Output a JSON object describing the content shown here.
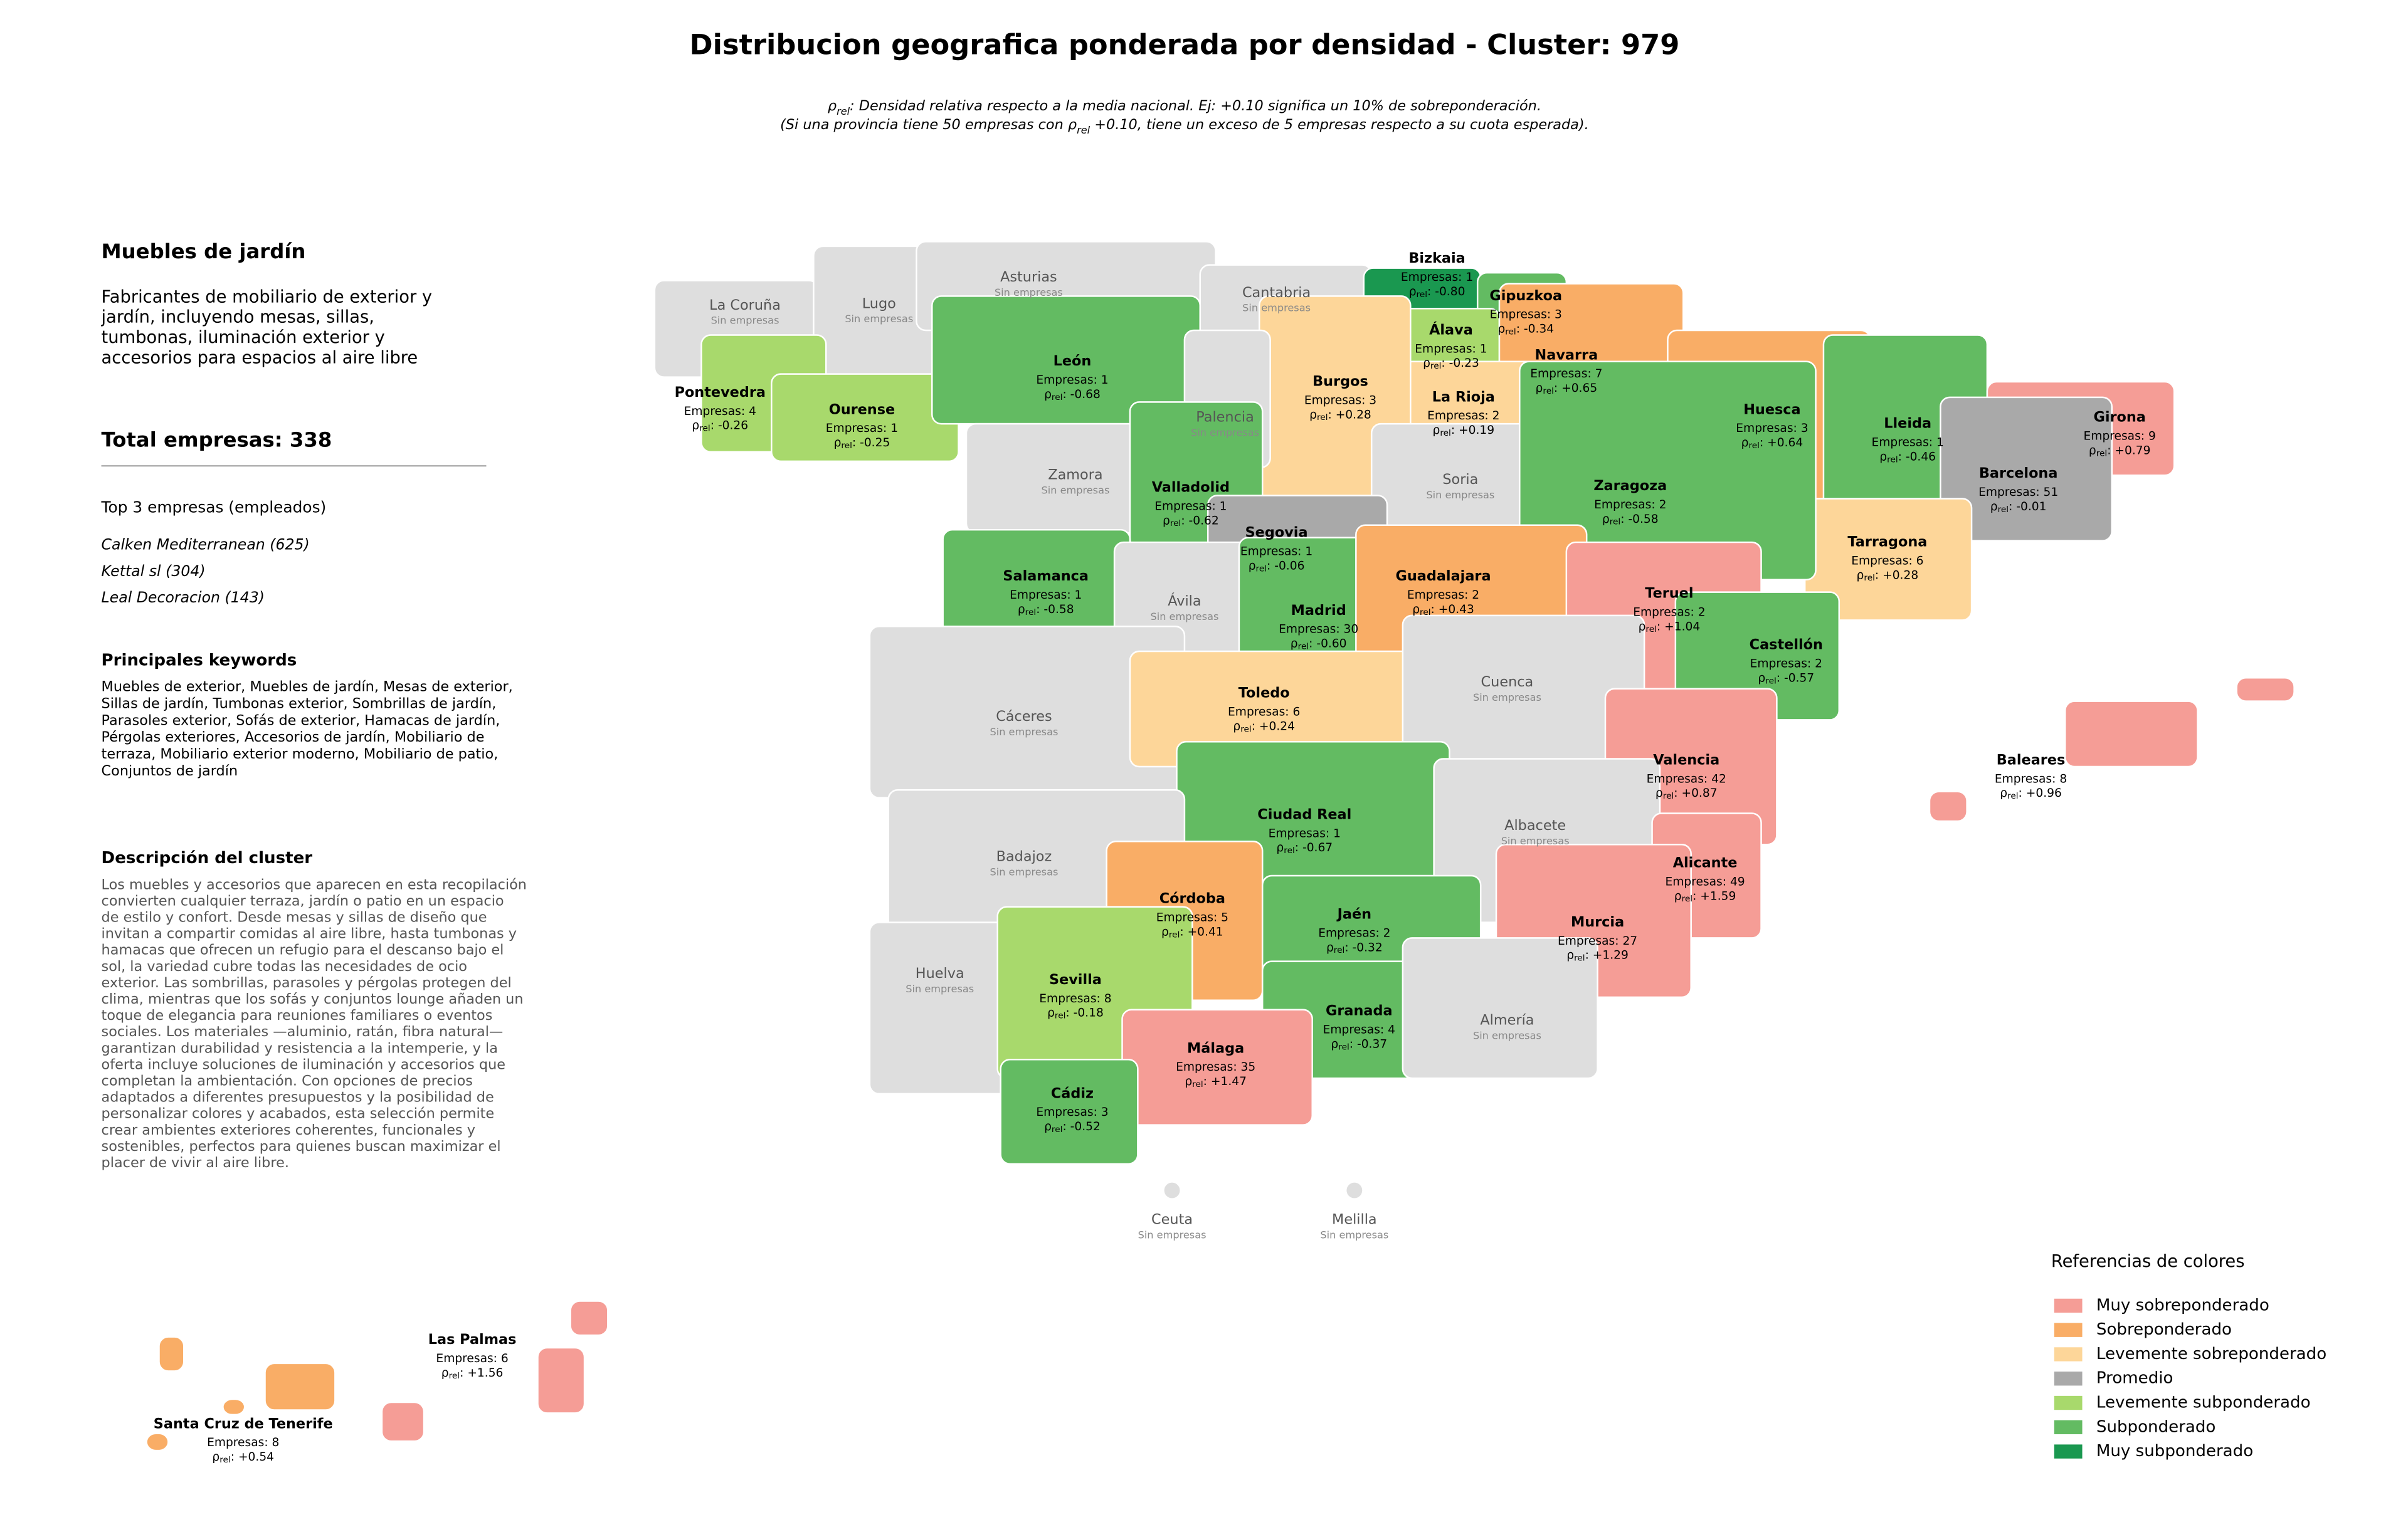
{
  "header": {
    "title": "Distribucion geografica ponderada por densidad - Cluster: 979",
    "subtitle": [
      [
        "ρ",
        "rel",
        ": Densidad relativa respecto a la media nacional. Ej: +0.10 significa un 10% de sobreponderación."
      ],
      [
        "(Si una provincia tiene 50 empresas con ρ",
        "rel",
        " +0.10, tiene un exceso de 5 empresas respecto a su cuota esperada)."
      ]
    ]
  },
  "panel": {
    "title": "Muebles de jardín",
    "description": [
      "Fabricantes de mobiliario de exterior y",
      "jardín, incluyendo mesas, sillas,",
      "tumbonas, iluminación exterior y",
      "accesorios para espacios al aire libre"
    ],
    "total": "Total empresas: 338",
    "top_title": "Top 3 empresas (empleados)",
    "top": [
      "Calken Mediterranean (625)",
      "Kettal sl (304)",
      "Leal Decoracion (143)"
    ],
    "keywords_title": "Principales keywords",
    "keywords": [
      "Muebles de exterior, Muebles de jardín, Mesas de exterior,",
      "Sillas de jardín, Tumbonas exterior, Sombrillas de jardín,",
      "Parasoles exterior, Sofás de exterior, Hamacas de jardín,",
      "Pérgolas exteriores, Accesorios de jardín, Mobiliario de",
      "terraza, Mobiliario exterior moderno, Mobiliario de patio,",
      "Conjuntos de jardín"
    ],
    "cluster_title": "Descripción del cluster",
    "cluster_text": [
      "Los muebles y accesorios que aparecen en esta recopilación",
      "convierten cualquier terraza, jardín o patio en un espacio",
      "de estilo y confort. Desde mesas y sillas de diseño que",
      "invitan a compartir comidas al aire libre, hasta tumbonas y",
      "hamacas que ofrecen un refugio para el descanso bajo el",
      "sol, la variedad cubre todas las necesidades de ocio",
      "exterior. Las sombrillas, parasoles y pérgolas protegen del",
      "clima, mientras que los sofás y conjuntos lounge añaden un",
      "toque de elegancia para reuniones familiares o eventos",
      "sociales. Los materiales —aluminio, ratán, fibra natural—",
      "garantizan durabilidad y resistencia a la intemperie, y la",
      "oferta incluye soluciones de iluminación y accesorios que",
      "completan la ambientación. Con opciones de precios",
      "adaptados a diferentes presupuestos y la posibilidad de",
      "personalizar colores y acabados, esta selección permite",
      "crear ambientes exteriores coherentes, funcionales y",
      "sostenibles, perfectos para quienes buscan maximizar el",
      "placer de vivir al aire libre."
    ]
  },
  "map": {
    "rho_symbol": "ρ",
    "rho_sub": "rel",
    "rho_sep": ": ",
    "empty_color": "#dedede",
    "provinces": [
      {
        "name": "La Coruña",
        "count": "Sin empresas"
      },
      {
        "name": "Lugo",
        "count": "Sin empresas"
      },
      {
        "name": "Pontevedra",
        "count": "Empresas: 4",
        "rho": "-0.26",
        "category": 4
      },
      {
        "name": "Ourense",
        "count": "Empresas: 1",
        "rho": "-0.25",
        "category": 4
      },
      {
        "name": "Asturias",
        "count": "Sin empresas"
      },
      {
        "name": "Cantabria",
        "count": "Sin empresas"
      },
      {
        "name": "Bizkaia",
        "count": "Empresas: 1",
        "rho": "-0.80",
        "category": 6
      },
      {
        "name": "Gipuzkoa",
        "count": "Empresas: 3",
        "rho": "-0.34",
        "category": 5
      },
      {
        "name": "Álava",
        "count": "Empresas: 1",
        "rho": "-0.23",
        "category": 4
      },
      {
        "name": "Navarra",
        "count": "Empresas: 7",
        "rho": "+0.65",
        "category": 1
      },
      {
        "name": "La Rioja",
        "count": "Empresas: 2",
        "rho": "+0.19",
        "category": 2
      },
      {
        "name": "Burgos",
        "count": "Empresas: 3",
        "rho": "+0.28",
        "category": 2
      },
      {
        "name": "León",
        "count": "Empresas: 1",
        "rho": "-0.68",
        "category": 5
      },
      {
        "name": "Palencia",
        "count": "Sin empresas"
      },
      {
        "name": "Zamora",
        "count": "Sin empresas"
      },
      {
        "name": "Valladolid",
        "count": "Empresas: 1",
        "rho": "-0.62",
        "category": 5
      },
      {
        "name": "Soria",
        "count": "Sin empresas"
      },
      {
        "name": "Segovia",
        "count": "Empresas: 1",
        "rho": "-0.06",
        "category": 3
      },
      {
        "name": "Huesca",
        "count": "Empresas: 3",
        "rho": "+0.64",
        "category": 1
      },
      {
        "name": "Lleida",
        "count": "Empresas: 1",
        "rho": "-0.46",
        "category": 5
      },
      {
        "name": "Girona",
        "count": "Empresas: 9",
        "rho": "+0.79",
        "category": 0
      },
      {
        "name": "Barcelona",
        "count": "Empresas: 51",
        "rho": "-0.01",
        "category": 3
      },
      {
        "name": "Tarragona",
        "count": "Empresas: 6",
        "rho": "+0.28",
        "category": 2
      },
      {
        "name": "Zaragoza",
        "count": "Empresas: 2",
        "rho": "-0.58",
        "category": 5
      },
      {
        "name": "Salamanca",
        "count": "Empresas: 1",
        "rho": "-0.58",
        "category": 5
      },
      {
        "name": "Ávila",
        "count": "Sin empresas"
      },
      {
        "name": "Madrid",
        "count": "Empresas: 30",
        "rho": "-0.60",
        "category": 5
      },
      {
        "name": "Guadalajara",
        "count": "Empresas: 2",
        "rho": "+0.43",
        "category": 1
      },
      {
        "name": "Teruel",
        "count": "Empresas: 2",
        "rho": "+1.04",
        "category": 0
      },
      {
        "name": "Castellón",
        "count": "Empresas: 2",
        "rho": "-0.57",
        "category": 5
      },
      {
        "name": "Cáceres",
        "count": "Sin empresas"
      },
      {
        "name": "Toledo",
        "count": "Empresas: 6",
        "rho": "+0.24",
        "category": 2
      },
      {
        "name": "Cuenca",
        "count": "Sin empresas"
      },
      {
        "name": "Valencia",
        "count": "Empresas: 42",
        "rho": "+0.87",
        "category": 0
      },
      {
        "name": "Ciudad Real",
        "count": "Empresas: 1",
        "rho": "-0.67",
        "category": 5
      },
      {
        "name": "Albacete",
        "count": "Sin empresas"
      },
      {
        "name": "Badajoz",
        "count": "Sin empresas"
      },
      {
        "name": "Alicante",
        "count": "Empresas: 49",
        "rho": "+1.59",
        "category": 0
      },
      {
        "name": "Murcia",
        "count": "Empresas: 27",
        "rho": "+1.29",
        "category": 0
      },
      {
        "name": "Córdoba",
        "count": "Empresas: 5",
        "rho": "+0.41",
        "category": 1
      },
      {
        "name": "Jaén",
        "count": "Empresas: 2",
        "rho": "-0.32",
        "category": 5
      },
      {
        "name": "Huelva",
        "count": "Sin empresas"
      },
      {
        "name": "Sevilla",
        "count": "Empresas: 8",
        "rho": "-0.18",
        "category": 4
      },
      {
        "name": "Granada",
        "count": "Empresas: 4",
        "rho": "-0.37",
        "category": 5
      },
      {
        "name": "Almería",
        "count": "Sin empresas"
      },
      {
        "name": "Málaga",
        "count": "Empresas: 35",
        "rho": "+1.47",
        "category": 0
      },
      {
        "name": "Cádiz",
        "count": "Empresas: 3",
        "rho": "-0.52",
        "category": 5
      },
      {
        "name": "Baleares",
        "count": "Empresas: 8",
        "rho": "+0.96",
        "category": 0
      },
      {
        "name": "Ceuta",
        "count": "Sin empresas"
      },
      {
        "name": "Melilla",
        "count": "Sin empresas"
      },
      {
        "name": "Las Palmas",
        "count": "Empresas: 6",
        "rho": "+1.56",
        "category": 0
      },
      {
        "name": "Santa Cruz de Tenerife",
        "count": "Empresas: 8",
        "rho": "+0.54",
        "category": 1
      }
    ]
  },
  "legend": {
    "title": "Referencias de colores",
    "items": [
      {
        "name": "Muy sobreponderado",
        "color": "#f59d96"
      },
      {
        "name": "Sobreponderado",
        "color": "#f9ad66"
      },
      {
        "name": "Levemente sobreponderado",
        "color": "#fdd699"
      },
      {
        "name": "Promedio",
        "color": "#a9a9a9"
      },
      {
        "name": "Levemente subponderado",
        "color": "#a8d96c"
      },
      {
        "name": "Subponderado",
        "color": "#63bb62"
      },
      {
        "name": "Muy subponderado",
        "color": "#1a9850"
      }
    ]
  }
}
